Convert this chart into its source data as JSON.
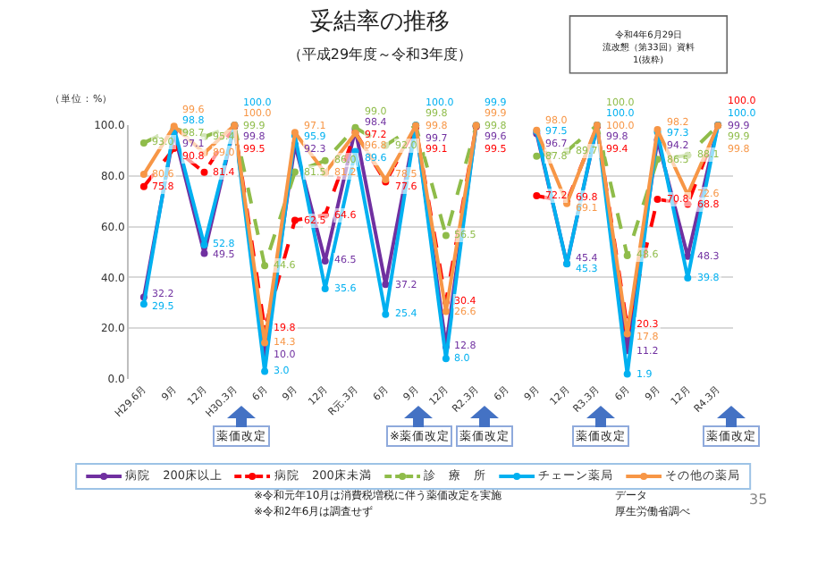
{
  "chart_data": {
    "type": "line",
    "title": "妥結率の推移",
    "subtitle": "（平成29年度～令和3年度）",
    "ylabel": "（単位：%）",
    "categories": [
      "H29.6月",
      "9月",
      "12月",
      "H30.3月",
      "6月",
      "9月",
      "12月",
      "R元.3月",
      "6月",
      "9月",
      "12月",
      "R2.3月",
      "6月",
      "9月",
      "12月",
      "R3.3月",
      "6月",
      "9月",
      "12月",
      "R4.3月"
    ],
    "series": [
      {
        "name": "病院　200床以上",
        "color": "#7030a0",
        "line_style": "solid",
        "values": [
          32.2,
          97.1,
          49.5,
          99.8,
          10.0,
          92.3,
          46.5,
          98.4,
          37.2,
          99.7,
          12.8,
          99.6,
          null,
          96.7,
          45.4,
          99.8,
          11.2,
          94.2,
          48.3,
          99.9
        ],
        "value_labels": [
          "32.2",
          "97.1",
          "49.5",
          "99.8",
          "10.0",
          "92.3",
          "46.5",
          "98.4",
          "37.2",
          "99.7",
          "12.8",
          "99.6",
          null,
          "96.7",
          "45.4",
          "99.8",
          "11.2",
          "94.2",
          "48.3",
          "99.9"
        ]
      },
      {
        "name": "病院　200床未満",
        "color": "#ff0000",
        "line_style": "dashed",
        "values": [
          75.8,
          90.8,
          81.4,
          99.5,
          19.8,
          62.5,
          64.6,
          97.2,
          77.6,
          99.1,
          30.4,
          99.5,
          null,
          72.2,
          69.8,
          99.4,
          20.3,
          70.8,
          68.8,
          100.0
        ],
        "value_labels": [
          "75.8",
          "90.8",
          "81.4",
          "99.5",
          "19.8",
          "62.5",
          "64.6",
          "97.2",
          "77.6",
          "99.1",
          "30.4",
          "99.5",
          null,
          "72.2",
          "69.8",
          "99.4",
          "20.3",
          "70.8",
          "68.8",
          "100.0"
        ]
      },
      {
        "name": "診　療　所",
        "color": "#8fbc4a",
        "line_style": "dashed",
        "values": [
          93.0,
          98.7,
          95.4,
          99.9,
          44.6,
          81.5,
          86.0,
          99.0,
          92.0,
          99.8,
          56.5,
          99.8,
          null,
          87.8,
          89.7,
          100.0,
          48.6,
          86.5,
          88.1,
          99.9
        ],
        "value_labels": [
          "93.0",
          "98.7",
          "95.4",
          "99.9",
          "44.6",
          "81.5",
          "86.0",
          "99.0",
          "92.0",
          "99.8",
          "56.5",
          "99.8",
          null,
          "87.8",
          "89.7",
          "100.0",
          "48.6",
          "86.5",
          "88.1",
          "99.9"
        ]
      },
      {
        "name": "チェーン薬局",
        "color": "#00b0f0",
        "line_style": "solid",
        "values": [
          29.5,
          98.8,
          52.8,
          100.0,
          3.0,
          95.9,
          35.6,
          89.6,
          25.4,
          100.0,
          8.0,
          99.9,
          null,
          97.5,
          45.3,
          100.0,
          1.9,
          97.3,
          39.8,
          100.0
        ],
        "value_labels": [
          "29.5",
          "98.8",
          "52.8",
          "100.0",
          "3.0",
          "95.9",
          "35.6",
          "89.6",
          "25.4",
          "100.0",
          "8.0",
          "99.9",
          null,
          "97.5",
          "45.3",
          "100.0",
          "1.9",
          "97.3",
          "39.8",
          "100.0"
        ]
      },
      {
        "name": "その他の薬局",
        "color": "#f79646",
        "line_style": "solid",
        "values": [
          80.6,
          99.6,
          89.0,
          100.0,
          14.3,
          97.1,
          81.2,
          96.8,
          78.5,
          99.8,
          26.6,
          99.9,
          null,
          98.0,
          69.1,
          100.0,
          17.8,
          98.2,
          72.6,
          99.8
        ],
        "value_labels": [
          "80.6",
          "99.6",
          "89.0",
          "100.0",
          "14.3",
          "97.1",
          "81.2",
          "96.8",
          "78.5",
          "99.8",
          "26.6",
          "99.9",
          null,
          "98.0",
          "69.1",
          "100.0",
          "17.8",
          "98.2",
          "72.6",
          "99.8"
        ]
      }
    ],
    "ylim": [
      0,
      100
    ],
    "yticks": [
      {
        "value": 0,
        "label": "0.0"
      },
      {
        "value": 20,
        "label": "20.0"
      },
      {
        "value": 40,
        "label": "40.0"
      },
      {
        "value": 60,
        "label": "60.0"
      },
      {
        "value": 80,
        "label": "80.0"
      },
      {
        "value": 100,
        "label": "100.0"
      }
    ],
    "grid": "y",
    "legend": "bottom",
    "marker": "circle",
    "annotations": [
      "薬価改定",
      "※薬価改定",
      "薬価改定",
      "薬価改定",
      "薬価改定",
      "令和4年6月29日",
      "流改懇（第33回）資料",
      "1(抜粋)",
      "※令和元年10月は消費税増税に伴う薬価改定を実施",
      "※令和2年6月は調査せず",
      "データ",
      "厚生労働省調べ",
      "35"
    ]
  }
}
